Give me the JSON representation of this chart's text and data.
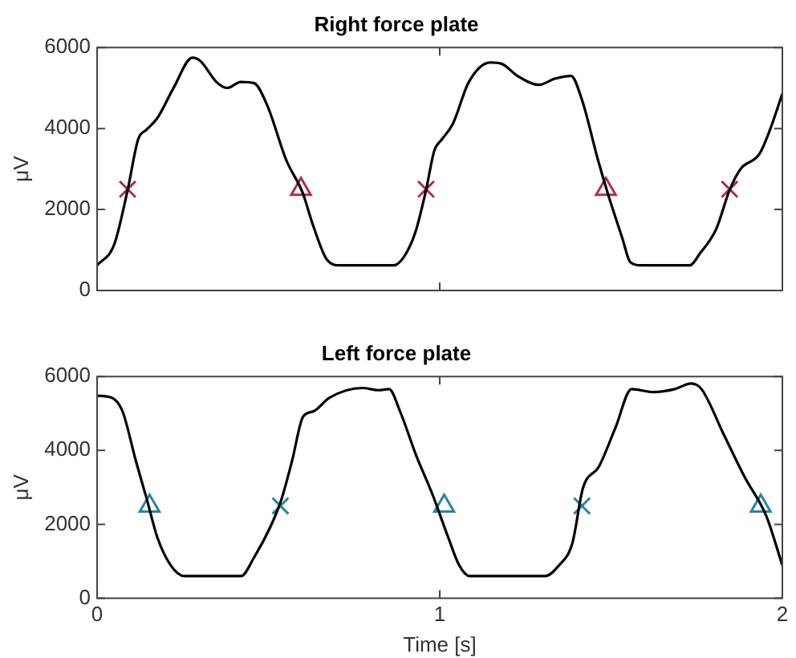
{
  "chart_data": [
    {
      "type": "line",
      "title": "Right force plate",
      "ylabel": "μV",
      "xlim": [
        0,
        2
      ],
      "xticks": [
        0,
        1,
        2
      ],
      "ylim": [
        0,
        6000
      ],
      "yticks": [
        0,
        2000,
        4000,
        6000
      ],
      "tick_labels": "y",
      "grid": false,
      "legend": false,
      "series": [
        {
          "color": "#000000",
          "marker": "none",
          "x": [
            0,
            0.05,
            0.089,
            0.12,
            0.144,
            0.176,
            0.223,
            0.278,
            0.301,
            0.348,
            0.38,
            0.419,
            0.458,
            0.497,
            0.552,
            0.6,
            0.631,
            0.67,
            0.709,
            0.866,
            0.897,
            0.929,
            0.96,
            0.984,
            1.007,
            1.038,
            1.085,
            1.148,
            1.18,
            1.227,
            1.289,
            1.336,
            1.383,
            1.415,
            1.462,
            1.493,
            1.533,
            1.556,
            1.587,
            1.729,
            1.76,
            1.807,
            1.846,
            1.878,
            1.933,
            1.964,
            2.0
          ],
          "values": [
            620,
            1140,
            2480,
            3740,
            3970,
            4260,
            5000,
            5750,
            5670,
            5150,
            5000,
            5150,
            5120,
            4560,
            3220,
            2410,
            1590,
            770,
            620,
            620,
            850,
            1440,
            2480,
            3450,
            3740,
            4110,
            5150,
            5630,
            5600,
            5300,
            5080,
            5230,
            5300,
            4710,
            3220,
            2330,
            1290,
            700,
            620,
            620,
            920,
            1520,
            2480,
            3000,
            3370,
            3970,
            4860
          ]
        },
        {
          "type": "scatter",
          "color": "#b02a5a",
          "marker": "cross",
          "x": [
            0.089,
            0.96,
            1.846
          ],
          "values": [
            2500,
            2500,
            2500
          ]
        },
        {
          "type": "scatter",
          "color": "#b02a5a",
          "marker": "triangle",
          "x": [
            0.595,
            1.485
          ],
          "values": [
            2500,
            2500
          ]
        }
      ]
    },
    {
      "type": "line",
      "title": "Left force plate",
      "xlabel": "Time [s]",
      "ylabel": "μV",
      "xlim": [
        0,
        2
      ],
      "xticks": [
        0,
        1,
        2
      ],
      "ylim": [
        0,
        6000
      ],
      "yticks": [
        0,
        2000,
        4000,
        6000
      ],
      "grid": false,
      "legend": false,
      "series": [
        {
          "color": "#000000",
          "marker": "none",
          "x": [
            0,
            0.042,
            0.074,
            0.113,
            0.145,
            0.176,
            0.215,
            0.255,
            0.42,
            0.459,
            0.506,
            0.538,
            0.569,
            0.601,
            0.632,
            0.679,
            0.774,
            0.821,
            0.852,
            0.884,
            0.931,
            0.978,
            1.025,
            1.057,
            1.088,
            1.308,
            1.348,
            1.387,
            1.418,
            1.465,
            1.513,
            1.56,
            1.623,
            1.686,
            1.733,
            1.764,
            1.827,
            1.89,
            1.953,
            2.0
          ],
          "values": [
            5480,
            5430,
            5060,
            3720,
            2680,
            1640,
            890,
            600,
            600,
            1120,
            1940,
            2680,
            3720,
            4910,
            5060,
            5430,
            5690,
            5630,
            5660,
            5060,
            3870,
            2830,
            1640,
            890,
            600,
            600,
            890,
            1490,
            2980,
            3570,
            4620,
            5660,
            5580,
            5660,
            5810,
            5660,
            4470,
            3280,
            2230,
            890
          ]
        },
        {
          "type": "scatter",
          "color": "#23879f",
          "marker": "triangle",
          "x": [
            0.153,
            1.013,
            1.937
          ],
          "values": [
            2500,
            2500,
            2500
          ]
        },
        {
          "type": "scatter",
          "color": "#23879f",
          "marker": "cross",
          "x": [
            0.535,
            1.415
          ],
          "values": [
            2500,
            2500
          ]
        }
      ]
    }
  ]
}
